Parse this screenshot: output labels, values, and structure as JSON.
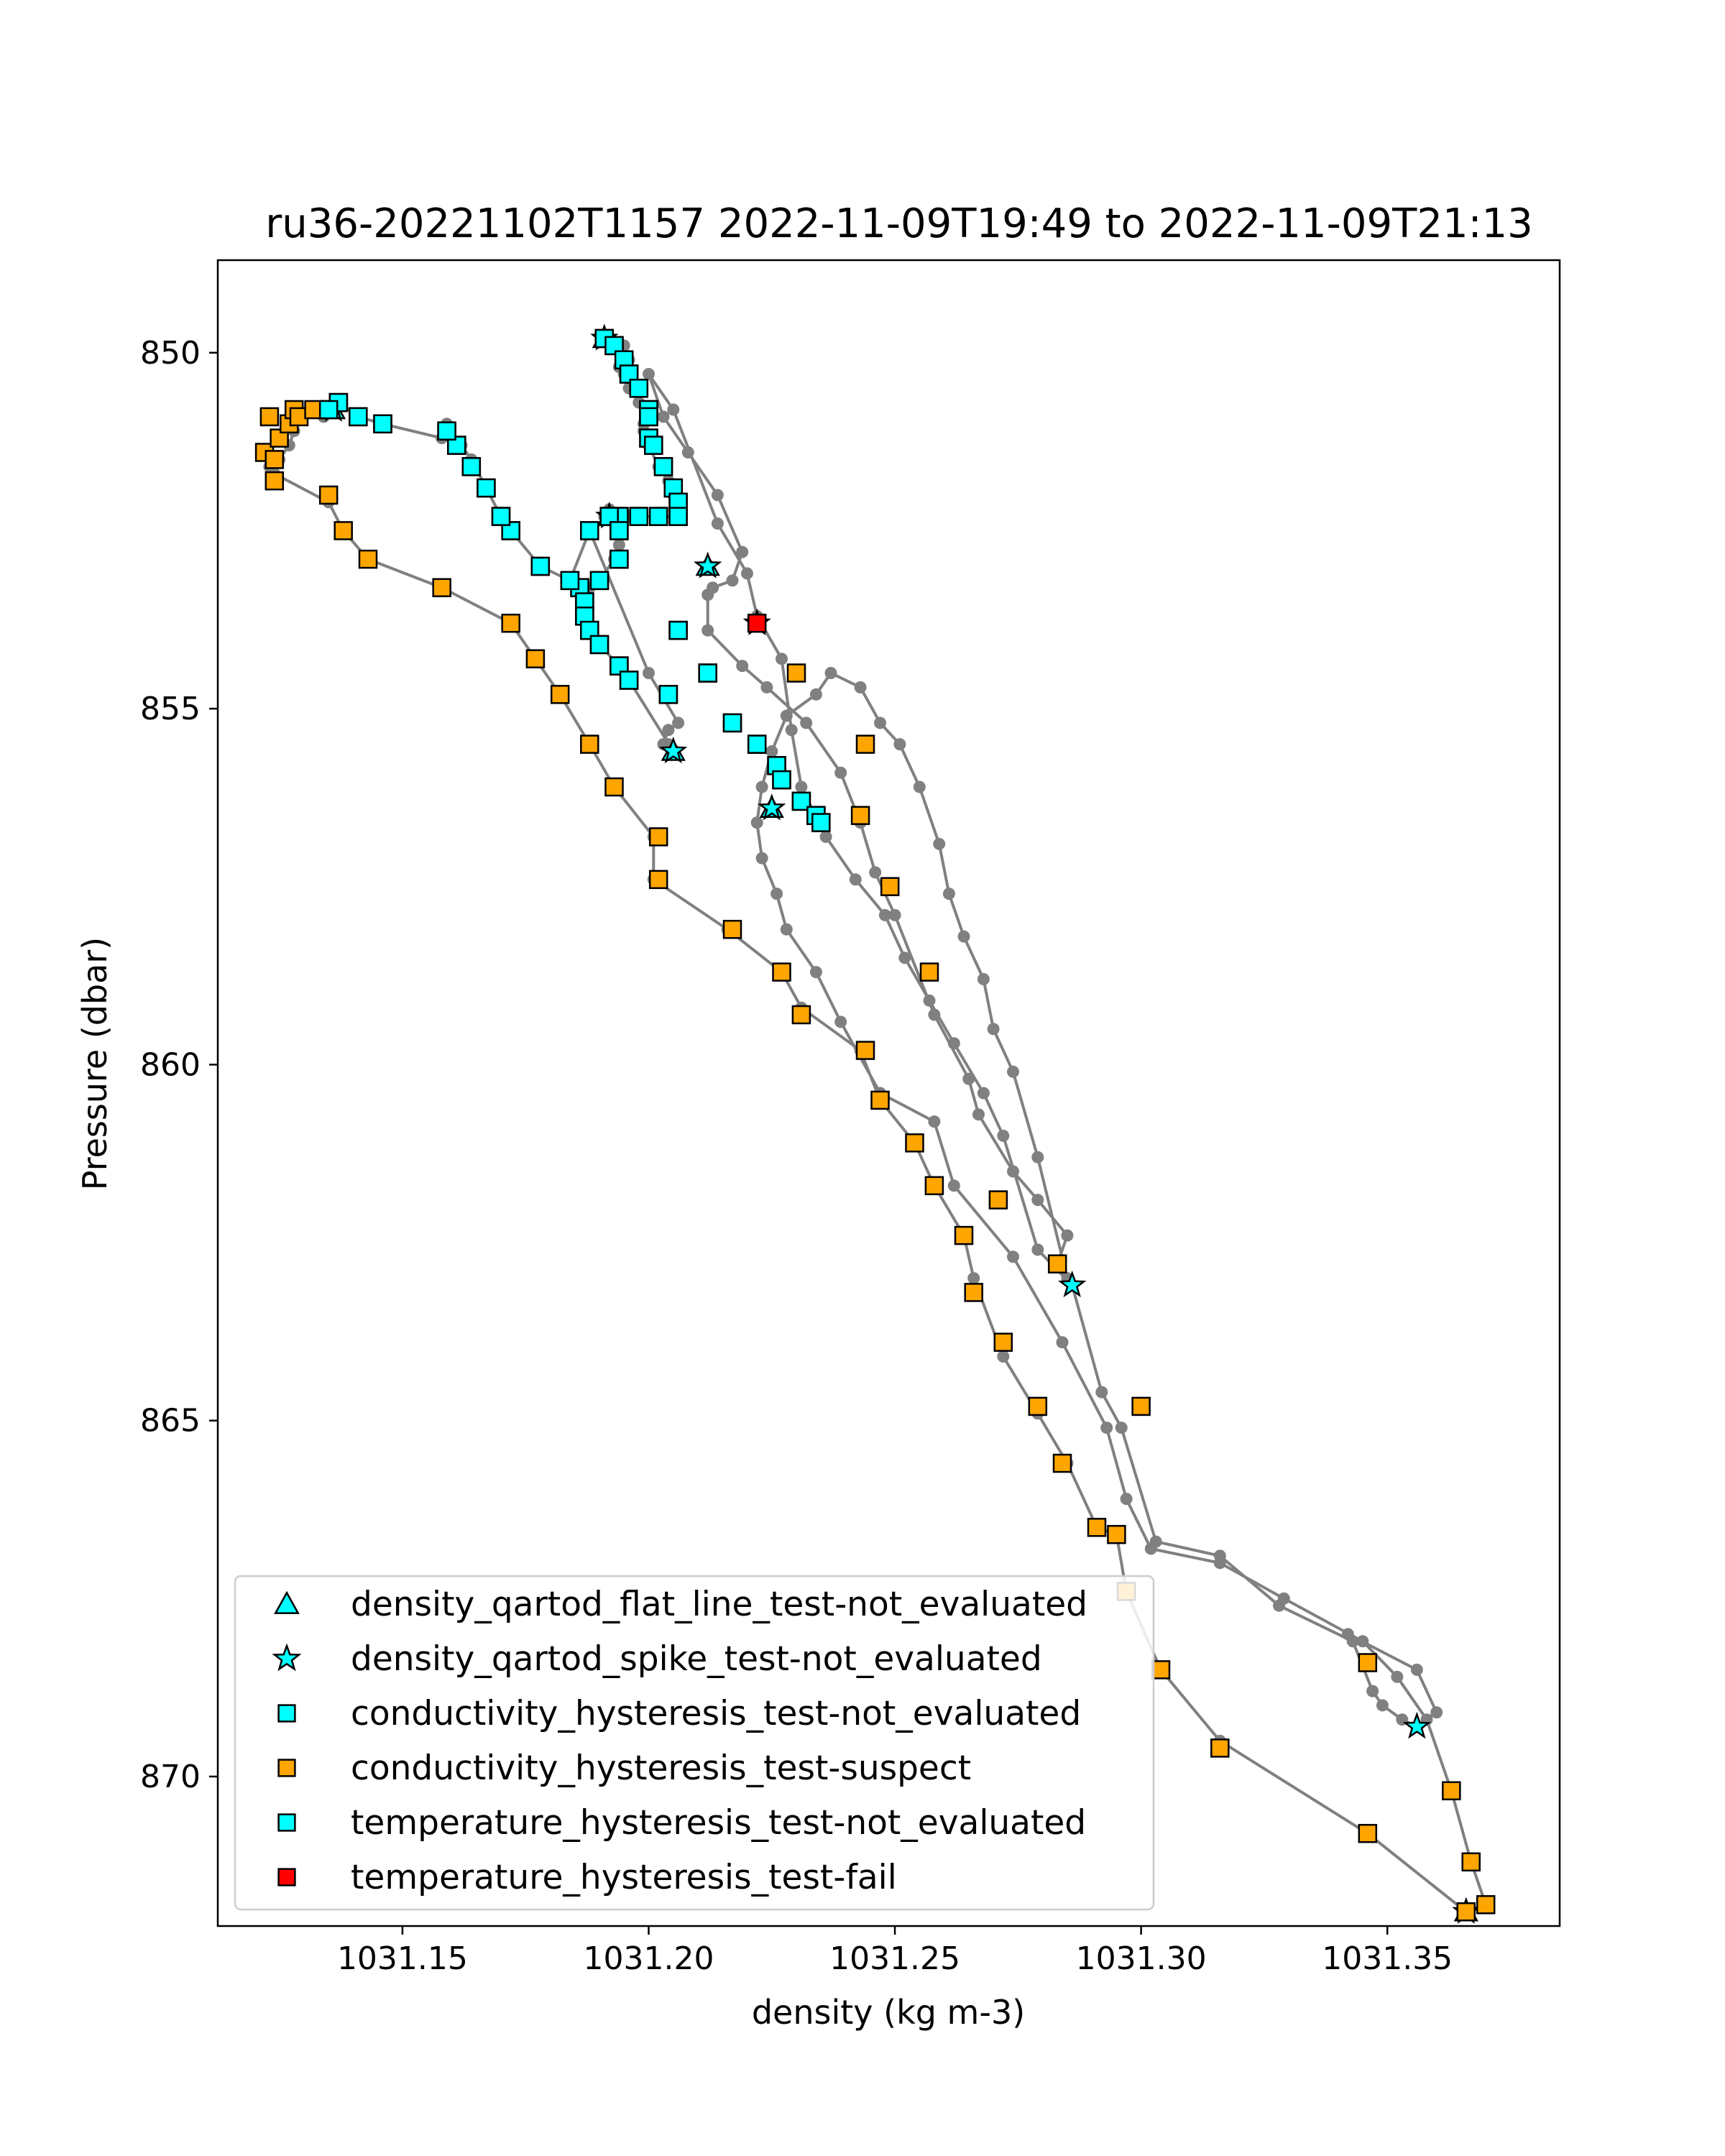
{
  "chart_data": {
    "type": "scatter",
    "title": "ru36-20221102T1157 2022-11-09T19:49 to 2022-11-09T21:13",
    "xlabel": "density (kg m-3)",
    "ylabel": "Pressure (dbar)",
    "xlim": [
      1031.1125,
      1031.385
    ],
    "ylim": [
      872.1,
      848.7
    ],
    "y_inverted": true,
    "xticks": [
      1031.15,
      1031.2,
      1031.25,
      1031.3,
      1031.35
    ],
    "xtick_labels": [
      "1031.15",
      "1031.20",
      "1031.25",
      "1031.30",
      "1031.35"
    ],
    "yticks": [
      850,
      855,
      860,
      865,
      870
    ],
    "ytick_labels": [
      "850",
      "855",
      "860",
      "865",
      "870"
    ],
    "grid": false,
    "legend_position": "lower-left",
    "profile_line": {
      "color": "#808080",
      "points": [
        [
          1031.191,
          849.8
        ],
        [
          1031.193,
          849.9
        ],
        [
          1031.195,
          849.9
        ],
        [
          1031.196,
          850.1
        ],
        [
          1031.194,
          850.2
        ],
        [
          1031.195,
          850.3
        ],
        [
          1031.196,
          850.5
        ],
        [
          1031.198,
          850.7
        ],
        [
          1031.2,
          850.8
        ],
        [
          1031.2,
          850.9
        ],
        [
          1031.199,
          851.0
        ],
        [
          1031.199,
          851.1
        ],
        [
          1031.2,
          851.2
        ],
        [
          1031.2,
          851.3
        ],
        [
          1031.202,
          851.6
        ],
        [
          1031.204,
          851.8
        ],
        [
          1031.205,
          852.0
        ],
        [
          1031.206,
          852.2
        ],
        [
          1031.206,
          852.3
        ],
        [
          1031.202,
          852.3
        ],
        [
          1031.198,
          852.3
        ],
        [
          1031.196,
          852.3
        ],
        [
          1031.194,
          852.3
        ],
        [
          1031.193,
          852.3
        ],
        [
          1031.191,
          852.3
        ],
        [
          1031.192,
          852.2
        ],
        [
          1031.193,
          852.3
        ],
        [
          1031.194,
          852.5
        ],
        [
          1031.194,
          852.7
        ],
        [
          1031.193,
          852.9
        ],
        [
          1031.19,
          853.2
        ],
        [
          1031.188,
          853.3
        ],
        [
          1031.186,
          853.3
        ],
        [
          1031.187,
          853.5
        ],
        [
          1031.187,
          853.7
        ],
        [
          1031.188,
          853.9
        ],
        [
          1031.19,
          854.1
        ],
        [
          1031.194,
          854.4
        ],
        [
          1031.196,
          854.6
        ],
        [
          1031.205,
          855.6
        ],
        [
          1031.204,
          855.5
        ],
        [
          1031.203,
          855.5
        ],
        [
          1031.204,
          855.3
        ],
        [
          1031.206,
          855.2
        ],
        [
          1031.2,
          854.5
        ],
        [
          1031.188,
          852.5
        ],
        [
          1031.184,
          853.2
        ],
        [
          1031.178,
          853.0
        ],
        [
          1031.172,
          852.5
        ],
        [
          1031.17,
          852.3
        ],
        [
          1031.167,
          851.9
        ],
        [
          1031.164,
          851.5
        ],
        [
          1031.162,
          851.3
        ],
        [
          1031.159,
          851.0
        ],
        [
          1031.158,
          851.2
        ],
        [
          1031.146,
          851.0
        ],
        [
          1031.141,
          850.9
        ],
        [
          1031.137,
          850.7
        ],
        [
          1031.136,
          850.8
        ],
        [
          1031.134,
          850.9
        ],
        [
          1031.132,
          850.8
        ],
        [
          1031.129,
          850.9
        ],
        [
          1031.128,
          851.1
        ],
        [
          1031.127,
          851.3
        ],
        [
          1031.125,
          851.5
        ],
        [
          1031.123,
          851.6
        ],
        [
          1031.124,
          851.7
        ],
        [
          1031.135,
          852.1
        ],
        [
          1031.138,
          852.5
        ],
        [
          1031.143,
          852.9
        ],
        [
          1031.158,
          853.3
        ],
        [
          1031.172,
          853.8
        ],
        [
          1031.177,
          854.3
        ],
        [
          1031.182,
          854.8
        ],
        [
          1031.188,
          855.5
        ],
        [
          1031.193,
          856.1
        ],
        [
          1031.201,
          856.8
        ],
        [
          1031.201,
          857.4
        ],
        [
          1031.216,
          858.1
        ],
        [
          1031.227,
          858.7
        ],
        [
          1031.231,
          859.2
        ],
        [
          1031.243,
          859.8
        ],
        [
          1031.247,
          860.5
        ],
        [
          1031.254,
          861.1
        ],
        [
          1031.258,
          861.7
        ],
        [
          1031.264,
          862.4
        ],
        [
          1031.266,
          863.0
        ],
        [
          1031.272,
          864.1
        ],
        [
          1031.279,
          864.9
        ],
        [
          1031.285,
          865.6
        ],
        [
          1031.291,
          866.5
        ],
        [
          1031.295,
          866.6
        ],
        [
          1031.297,
          867.4
        ],
        [
          1031.304,
          868.5
        ],
        [
          1031.316,
          869.5
        ],
        [
          1031.346,
          870.8
        ],
        [
          1031.366,
          871.9
        ],
        [
          1031.37,
          871.8
        ],
        [
          1031.367,
          871.2
        ],
        [
          1031.363,
          870.2
        ],
        [
          1031.358,
          869.2
        ],
        [
          1031.352,
          868.6
        ],
        [
          1031.345,
          868.1
        ],
        [
          1031.329,
          867.5
        ],
        [
          1031.316,
          867.0
        ],
        [
          1031.302,
          866.8
        ],
        [
          1031.297,
          866.1
        ],
        [
          1031.293,
          865.1
        ],
        [
          1031.284,
          863.9
        ],
        [
          1031.274,
          862.7
        ],
        [
          1031.262,
          861.7
        ],
        [
          1031.258,
          860.8
        ],
        [
          1031.247,
          860.4
        ],
        [
          1031.239,
          859.4
        ],
        [
          1031.234,
          858.7
        ],
        [
          1031.228,
          858.1
        ],
        [
          1031.226,
          857.6
        ],
        [
          1031.223,
          857.1
        ],
        [
          1031.222,
          856.6
        ],
        [
          1031.223,
          856.1
        ],
        [
          1031.225,
          855.6
        ],
        [
          1031.228,
          855.1
        ],
        [
          1031.234,
          854.8
        ],
        [
          1031.237,
          854.5
        ],
        [
          1031.243,
          854.7
        ],
        [
          1031.247,
          855.2
        ],
        [
          1031.251,
          855.5
        ],
        [
          1031.255,
          856.1
        ],
        [
          1031.259,
          856.9
        ],
        [
          1031.261,
          857.6
        ],
        [
          1031.264,
          858.2
        ],
        [
          1031.268,
          858.8
        ],
        [
          1031.27,
          859.5
        ],
        [
          1031.274,
          860.1
        ],
        [
          1031.279,
          861.3
        ],
        [
          1031.285,
          863.0
        ],
        [
          1031.283,
          862.8
        ],
        [
          1031.285,
          862.4
        ],
        [
          1031.279,
          861.9
        ],
        [
          1031.274,
          861.5
        ],
        [
          1031.267,
          860.7
        ],
        [
          1031.265,
          860.2
        ],
        [
          1031.258,
          859.3
        ],
        [
          1031.25,
          857.9
        ],
        [
          1031.246,
          857.3
        ],
        [
          1031.243,
          856.6
        ],
        [
          1031.239,
          855.9
        ],
        [
          1031.232,
          855.2
        ],
        [
          1031.224,
          854.7
        ],
        [
          1031.219,
          854.4
        ],
        [
          1031.212,
          853.9
        ],
        [
          1031.212,
          853.4
        ],
        [
          1031.213,
          853.3
        ],
        [
          1031.217,
          853.2
        ],
        [
          1031.219,
          852.8
        ],
        [
          1031.214,
          852.0
        ],
        [
          1031.208,
          851.4
        ],
        [
          1031.203,
          850.9
        ],
        [
          1031.2,
          850.3
        ],
        [
          1031.205,
          850.8
        ],
        [
          1031.214,
          852.4
        ],
        [
          1031.22,
          853.1
        ],
        [
          1031.222,
          853.7
        ],
        [
          1031.227,
          854.3
        ],
        [
          1031.229,
          855.3
        ],
        [
          1031.231,
          856.1
        ],
        [
          1031.236,
          856.8
        ],
        [
          1031.242,
          857.4
        ],
        [
          1031.248,
          857.9
        ],
        [
          1031.252,
          858.5
        ],
        [
          1031.257,
          859.1
        ],
        [
          1031.262,
          859.7
        ],
        [
          1031.268,
          860.4
        ],
        [
          1031.272,
          861.0
        ],
        [
          1031.279,
          862.6
        ],
        [
          1031.286,
          863.1
        ],
        [
          1031.292,
          864.6
        ],
        [
          1031.296,
          865.1
        ],
        [
          1031.303,
          866.7
        ],
        [
          1031.316,
          866.9
        ],
        [
          1031.328,
          867.6
        ],
        [
          1031.343,
          868.1
        ],
        [
          1031.347,
          868.8
        ],
        [
          1031.349,
          869.0
        ],
        [
          1031.353,
          869.2
        ],
        [
          1031.356,
          869.3
        ],
        [
          1031.36,
          869.1
        ],
        [
          1031.356,
          868.5
        ],
        [
          1031.342,
          868.0
        ]
      ]
    },
    "series": [
      {
        "name": "density_qartod_flat_line_test-not_evaluated",
        "marker": "triangle",
        "color": "#00ffff",
        "x": [
          1031.191,
          1031.136,
          1031.192,
          1031.212,
          1031.205,
          1031.225,
          1031.366
        ],
        "y": [
          849.8,
          850.8,
          852.3,
          853.0,
          855.6,
          856.4,
          871.9
        ]
      },
      {
        "name": "density_qartod_spike_test-not_evaluated",
        "marker": "star",
        "color": "#00ffff",
        "x": [
          1031.191,
          1031.136,
          1031.192,
          1031.212,
          1031.205,
          1031.225,
          1031.222,
          1031.286,
          1031.356,
          1031.366
        ],
        "y": [
          849.8,
          850.8,
          852.3,
          853.0,
          855.6,
          856.4,
          853.8,
          863.1,
          869.3,
          871.9
        ]
      },
      {
        "name": "conductivity_hysteresis_test-not_evaluated",
        "marker": "square",
        "color": "#00ffff",
        "x": [
          1031.191,
          1031.193,
          1031.195,
          1031.196,
          1031.198,
          1031.2,
          1031.2,
          1031.2,
          1031.201,
          1031.203,
          1031.205,
          1031.206,
          1031.206,
          1031.202,
          1031.198,
          1031.194,
          1031.192,
          1031.194,
          1031.194,
          1031.19,
          1031.186,
          1031.187,
          1031.187,
          1031.188,
          1031.19,
          1031.194,
          1031.196,
          1031.188,
          1031.184,
          1031.178,
          1031.172,
          1031.17,
          1031.167,
          1031.164,
          1031.161,
          1031.159,
          1031.146,
          1031.141,
          1031.137,
          1031.135,
          1031.212,
          1031.204,
          1031.206,
          1031.217,
          1031.222,
          1031.226,
          1031.227,
          1031.231,
          1031.234,
          1031.235
        ],
        "y": [
          849.8,
          849.9,
          850.1,
          850.3,
          850.5,
          850.8,
          850.9,
          851.2,
          851.3,
          851.6,
          851.9,
          852.1,
          852.3,
          852.3,
          852.3,
          852.3,
          852.3,
          852.5,
          852.9,
          853.2,
          853.3,
          853.5,
          853.7,
          853.9,
          854.1,
          854.4,
          854.6,
          852.5,
          853.2,
          853.0,
          852.5,
          852.3,
          851.9,
          851.6,
          851.3,
          851.1,
          851.0,
          850.9,
          850.7,
          850.8,
          854.5,
          854.8,
          853.9,
          855.2,
          855.5,
          855.8,
          856.0,
          856.3,
          856.5,
          856.6
        ]
      },
      {
        "name": "conductivity_hysteresis_test-suspect",
        "marker": "square",
        "color": "#ffa500",
        "x": [
          1031.123,
          1031.122,
          1031.124,
          1031.125,
          1031.127,
          1031.128,
          1031.129,
          1031.132,
          1031.124,
          1031.135,
          1031.138,
          1031.143,
          1031.158,
          1031.172,
          1031.177,
          1031.182,
          1031.188,
          1031.193,
          1031.202,
          1031.202,
          1031.217,
          1031.227,
          1031.231,
          1031.244,
          1031.247,
          1031.254,
          1031.258,
          1031.264,
          1031.266,
          1031.272,
          1031.279,
          1031.284,
          1031.291,
          1031.295,
          1031.297,
          1031.304,
          1031.316,
          1031.346,
          1031.366,
          1031.37,
          1031.367,
          1031.363,
          1031.346,
          1031.3,
          1031.283,
          1031.271,
          1031.257,
          1031.249,
          1031.243,
          1031.244,
          1031.23
        ],
        "y": [
          850.9,
          851.4,
          851.5,
          851.2,
          851.0,
          850.8,
          850.9,
          850.8,
          851.8,
          852.0,
          852.5,
          852.9,
          853.3,
          853.8,
          854.3,
          854.8,
          855.5,
          856.1,
          856.8,
          857.4,
          858.1,
          858.7,
          859.3,
          859.8,
          860.5,
          861.1,
          861.7,
          862.4,
          863.2,
          863.9,
          864.8,
          865.6,
          866.5,
          866.6,
          867.4,
          868.5,
          869.6,
          870.8,
          871.9,
          871.8,
          871.2,
          870.2,
          868.4,
          864.8,
          862.8,
          861.9,
          858.7,
          857.5,
          856.5,
          855.5,
          854.5
        ]
      },
      {
        "name": "temperature_hysteresis_test-not_evaluated",
        "marker": "square",
        "color": "#00ffff",
        "x": [
          1031.191,
          1031.193,
          1031.195,
          1031.196,
          1031.198,
          1031.2,
          1031.2,
          1031.2,
          1031.201,
          1031.203,
          1031.205,
          1031.206,
          1031.206,
          1031.202,
          1031.198,
          1031.194,
          1031.192,
          1031.194,
          1031.194,
          1031.19,
          1031.186,
          1031.187,
          1031.187,
          1031.188,
          1031.19,
          1031.194,
          1031.196,
          1031.188,
          1031.184,
          1031.178,
          1031.172,
          1031.17,
          1031.167,
          1031.164,
          1031.161,
          1031.159,
          1031.146,
          1031.141,
          1031.137,
          1031.135,
          1031.212,
          1031.204,
          1031.206,
          1031.217,
          1031.222,
          1031.226,
          1031.227,
          1031.231,
          1031.234,
          1031.235
        ],
        "y": [
          849.8,
          849.9,
          850.1,
          850.3,
          850.5,
          850.8,
          850.9,
          851.2,
          851.3,
          851.6,
          851.9,
          852.1,
          852.3,
          852.3,
          852.3,
          852.3,
          852.3,
          852.5,
          852.9,
          853.2,
          853.3,
          853.5,
          853.7,
          853.9,
          854.1,
          854.4,
          854.6,
          852.5,
          853.2,
          853.0,
          852.5,
          852.3,
          851.9,
          851.6,
          851.3,
          851.1,
          851.0,
          850.9,
          850.7,
          850.8,
          854.5,
          854.8,
          853.9,
          855.2,
          855.5,
          855.8,
          856.0,
          856.3,
          856.5,
          856.6
        ]
      },
      {
        "name": "temperature_hysteresis_test-fail",
        "marker": "square",
        "color": "#ff0000",
        "x": [
          1031.222
        ],
        "y": [
          853.8
        ]
      }
    ]
  }
}
